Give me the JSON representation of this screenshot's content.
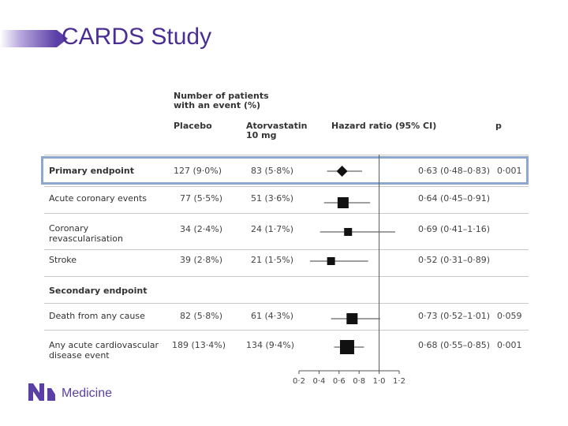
{
  "slide": {
    "title": "CARDS Study"
  },
  "headers": {
    "events": "Number of patients with an event (%)",
    "placebo": "Placebo",
    "atorvastatin": "Atorvastatin 10 mg",
    "hr": "Hazard ratio (95% CI)",
    "p": "p"
  },
  "section_secondary": "Secondary endpoint",
  "rows": [
    {
      "label": "Primary endpoint",
      "placebo": "127 (9·0%)",
      "atorvastatin": "83 (5·8%)",
      "hr_text": "0·63 (0·48–0·83)",
      "p": "0·001"
    },
    {
      "label": "Acute coronary events",
      "placebo": "77 (5·5%)",
      "atorvastatin": "51 (3·6%)",
      "hr_text": "0·64 (0·45–0·91)",
      "p": ""
    },
    {
      "label": "Coronary revascularisation",
      "placebo": "34 (2·4%)",
      "atorvastatin": "24 (1·7%)",
      "hr_text": "0·69 (0·41–1·16)",
      "p": ""
    },
    {
      "label": "Stroke",
      "placebo": "39 (2·8%)",
      "atorvastatin": "21 (1·5%)",
      "hr_text": "0·52 (0·31–0·89)",
      "p": ""
    },
    {
      "label": "Death from any cause",
      "placebo": "82 (5·8%)",
      "atorvastatin": "61 (4·3%)",
      "hr_text": "0·73 (0·52–1·01)",
      "p": "0·059"
    },
    {
      "label": "Any acute cardiovascular disease event",
      "placebo": "189 (13·4%)",
      "atorvastatin": "134 (9·4%)",
      "hr_text": "0·68 (0·55–0·85)",
      "p": "0·001"
    }
  ],
  "chart_data": {
    "type": "forest",
    "xlim": [
      0.2,
      1.2
    ],
    "reference_line": 1.0,
    "ticks": [
      "0·2",
      "0·4",
      "0·6",
      "0·8",
      "1·0",
      "1·2"
    ],
    "tick_values": [
      0.2,
      0.4,
      0.6,
      0.8,
      1.0,
      1.2
    ],
    "series": [
      {
        "hr": 0.63,
        "lo": 0.48,
        "hi": 0.83,
        "marker": "diamond"
      },
      {
        "hr": 0.64,
        "lo": 0.45,
        "hi": 0.91,
        "marker": "square"
      },
      {
        "hr": 0.69,
        "lo": 0.41,
        "hi": 1.16,
        "marker": "square"
      },
      {
        "hr": 0.52,
        "lo": 0.31,
        "hi": 0.89,
        "marker": "square"
      },
      {
        "hr": 0.73,
        "lo": 0.52,
        "hi": 1.01,
        "marker": "square"
      },
      {
        "hr": 0.68,
        "lo": 0.55,
        "hi": 0.85,
        "marker": "square"
      }
    ]
  },
  "logo": {
    "text": "Medicine"
  }
}
